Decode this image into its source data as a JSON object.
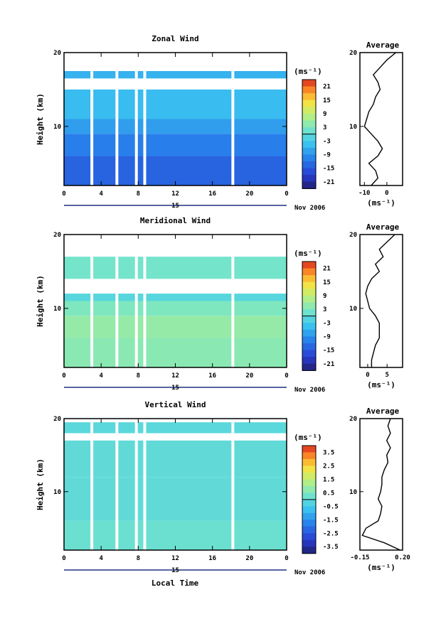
{
  "x_axis_label": "Local Time",
  "date_label": "Nov 2006",
  "day_label": "15",
  "chart_data": [
    {
      "type": "heatmap",
      "title": "Zonal Wind",
      "ylabel": "Height (km)",
      "unit_label": "(ms⁻¹)",
      "x_ticks": [
        "0",
        "4",
        "8",
        "12",
        "16",
        "20",
        "0"
      ],
      "y_ticks": [
        "10",
        "20"
      ],
      "xlim": [
        0,
        24
      ],
      "ylim": [
        2,
        20
      ],
      "colorbar_ticks": [
        "21",
        "15",
        "9",
        "3",
        "-3",
        "-9",
        "-15",
        "-21"
      ],
      "colorbar_range": [
        -24,
        24
      ],
      "rows": [
        {
          "height_min": 2,
          "height_max": 6,
          "value": -14
        },
        {
          "height_min": 6,
          "height_max": 9,
          "value": -11
        },
        {
          "height_min": 9,
          "height_max": 11,
          "value": -8
        },
        {
          "height_min": 11,
          "height_max": 15,
          "value": -5
        },
        {
          "height_min": 16.5,
          "height_max": 17.5,
          "value": -6
        }
      ],
      "data_gaps_hours": [
        3,
        5.7,
        7.8,
        8.7,
        18.2
      ],
      "average_profile": {
        "title": "Average",
        "xlabel": "(ms⁻¹)",
        "x_ticks": [
          "-10",
          "0"
        ],
        "y_ticks": [
          "10",
          "20"
        ],
        "xlim": [
          -12,
          7
        ],
        "height": [
          2,
          3,
          4,
          5,
          6,
          7,
          8,
          9,
          10,
          11,
          12,
          13,
          14,
          15,
          16,
          17,
          18,
          19,
          20
        ],
        "value": [
          -7,
          -4,
          -5,
          -8,
          -4,
          -2,
          -4,
          -7,
          -10,
          -9,
          -8,
          -6,
          -5,
          -3,
          -4,
          -6,
          -3,
          0,
          4
        ]
      }
    },
    {
      "type": "heatmap",
      "title": "Meridional Wind",
      "ylabel": "Height (km)",
      "unit_label": "(ms⁻¹)",
      "x_ticks": [
        "0",
        "4",
        "8",
        "12",
        "16",
        "20",
        "0"
      ],
      "y_ticks": [
        "10",
        "20"
      ],
      "xlim": [
        0,
        24
      ],
      "ylim": [
        2,
        20
      ],
      "colorbar_ticks": [
        "21",
        "15",
        "9",
        "3",
        "-3",
        "-9",
        "-15",
        "-21"
      ],
      "colorbar_range": [
        -24,
        24
      ],
      "rows": [
        {
          "height_min": 2,
          "height_max": 6,
          "value": 4
        },
        {
          "height_min": 6,
          "height_max": 9,
          "value": 5
        },
        {
          "height_min": 9,
          "height_max": 11,
          "value": 3
        },
        {
          "height_min": 11,
          "height_max": 12,
          "value": -1
        },
        {
          "height_min": 14,
          "height_max": 17,
          "value": 2
        }
      ],
      "data_gaps_hours": [
        3,
        5.7,
        7.8,
        8.7,
        18.2
      ],
      "average_profile": {
        "title": "Average",
        "xlabel": "(ms⁻¹)",
        "x_ticks": [
          "0",
          "5"
        ],
        "y_ticks": [
          "10",
          "20"
        ],
        "xlim": [
          -2,
          9
        ],
        "height": [
          2,
          3,
          4,
          5,
          6,
          7,
          8,
          9,
          10,
          11,
          12,
          13,
          14,
          15,
          16,
          17,
          18,
          19,
          20
        ],
        "value": [
          1,
          1,
          1.5,
          2,
          3,
          3,
          3,
          2,
          0.5,
          0,
          -0.5,
          0,
          1,
          3,
          2,
          4,
          3,
          5,
          7
        ]
      }
    },
    {
      "type": "heatmap",
      "title": "Vertical Wind",
      "ylabel": "Height (km)",
      "unit_label": "(ms⁻¹)",
      "x_ticks": [
        "0",
        "4",
        "8",
        "12",
        "16",
        "20",
        "0"
      ],
      "y_ticks": [
        "10",
        "20"
      ],
      "xlim": [
        0,
        24
      ],
      "ylim": [
        2,
        20
      ],
      "colorbar_ticks": [
        "3.5",
        "2.5",
        "1.5",
        "0.5",
        "-0.5",
        "-1.5",
        "-2.5",
        "-3.5"
      ],
      "colorbar_range": [
        -4,
        4
      ],
      "rows": [
        {
          "height_min": 2,
          "height_max": 6,
          "value": 0.2
        },
        {
          "height_min": 6,
          "height_max": 12,
          "value": 0
        },
        {
          "height_min": 12,
          "height_max": 17,
          "value": 0
        },
        {
          "height_min": 18,
          "height_max": 19.5,
          "value": -0.1
        }
      ],
      "data_gaps_hours": [
        3,
        5.7,
        7.8,
        8.7,
        18.2
      ],
      "average_profile": {
        "title": "Average",
        "xlabel": "(ms⁻¹)",
        "x_ticks": [
          "-0.15",
          "0.20"
        ],
        "y_ticks": [
          "10",
          "20"
        ],
        "xlim": [
          -0.15,
          0.2
        ],
        "height": [
          2,
          3,
          4,
          5,
          6,
          7,
          8,
          9,
          10,
          11,
          12,
          13,
          14,
          15,
          16,
          17,
          18,
          19,
          20
        ],
        "value": [
          0.18,
          0.05,
          -0.13,
          -0.1,
          0.0,
          0.02,
          0.03,
          0.0,
          0.02,
          0.03,
          0.03,
          0.05,
          0.08,
          0.07,
          0.1,
          0.07,
          0.1,
          0.08,
          0.1
        ]
      }
    }
  ]
}
